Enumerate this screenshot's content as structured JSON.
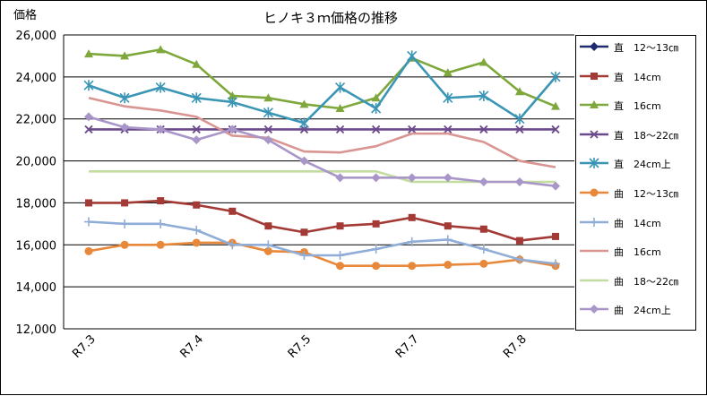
{
  "chart_data": {
    "type": "line",
    "title": "ヒノキ３ｍ価格の推移",
    "ylabel": "価格",
    "xlabel": "",
    "ylim": [
      12000,
      26000
    ],
    "yticks": [
      "12,000",
      "14,000",
      "16,000",
      "18,000",
      "20,000",
      "22,000",
      "24,000",
      "26,000"
    ],
    "ytick_values": [
      12000,
      14000,
      16000,
      18000,
      20000,
      22000,
      24000,
      26000
    ],
    "xtick_labels": [
      {
        "label": "R7.3",
        "index": 0
      },
      {
        "label": "R7.4",
        "index": 3
      },
      {
        "label": "R7.5",
        "index": 6
      },
      {
        "label": "R7.7",
        "index": 9
      },
      {
        "label": "R7.8",
        "index": 12
      }
    ],
    "n_points": 14,
    "legend_position": "right",
    "series": [
      {
        "name": "直　12～13㎝",
        "color": "#1f2a6e",
        "marker": "diamond",
        "values": [
          null,
          null,
          null,
          null,
          null,
          null,
          null,
          null,
          null,
          null,
          null,
          null,
          null,
          null
        ]
      },
      {
        "name": "直　14cm",
        "color": "#a33a36",
        "marker": "square",
        "values": [
          18000,
          18000,
          18100,
          17900,
          17600,
          16900,
          16600,
          16900,
          17000,
          17300,
          16900,
          16750,
          16200,
          16400
        ]
      },
      {
        "name": "直　16cm",
        "color": "#7fa83c",
        "marker": "triangle",
        "values": [
          25100,
          25000,
          25300,
          24600,
          23100,
          23000,
          22700,
          22500,
          23000,
          24900,
          24200,
          24700,
          23300,
          22600
        ]
      },
      {
        "name": "直　18～22㎝",
        "color": "#6b4a8c",
        "marker": "x",
        "values": [
          21500,
          21500,
          21500,
          21500,
          21500,
          21500,
          21500,
          21500,
          21500,
          21500,
          21500,
          21500,
          21500,
          21500
        ]
      },
      {
        "name": "直　24cm上",
        "color": "#3b95b5",
        "marker": "star",
        "values": [
          23600,
          23000,
          23500,
          23000,
          22800,
          22300,
          21800,
          23500,
          22500,
          25000,
          23000,
          23100,
          22000,
          24000
        ]
      },
      {
        "name": "曲　12～13㎝",
        "color": "#e8883a",
        "marker": "circle",
        "values": [
          15700,
          16000,
          16000,
          16100,
          16100,
          15700,
          15650,
          15000,
          15000,
          15000,
          15050,
          15100,
          15300,
          15000
        ]
      },
      {
        "name": "曲　14cm",
        "color": "#8fadd6",
        "marker": "plus",
        "values": [
          17100,
          17000,
          17000,
          16700,
          16000,
          16000,
          15500,
          15500,
          15800,
          16150,
          16250,
          15800,
          15300,
          15100
        ]
      },
      {
        "name": "曲　16cm",
        "color": "#d99592",
        "marker": "none",
        "values": [
          23000,
          22600,
          22400,
          22100,
          21200,
          21100,
          20450,
          20400,
          20700,
          21300,
          21300,
          20900,
          20000,
          19700
        ]
      },
      {
        "name": "曲　18～22㎝",
        "color": "#c3dca0",
        "marker": "none",
        "values": [
          19500,
          19500,
          19500,
          19500,
          19500,
          19500,
          19500,
          19500,
          19500,
          19000,
          19000,
          19000,
          19000,
          19000
        ]
      },
      {
        "name": "曲　24cm上",
        "color": "#a996c8",
        "marker": "diamond",
        "values": [
          22100,
          21600,
          21500,
          21000,
          21500,
          21000,
          20000,
          19200,
          19200,
          19200,
          19200,
          19000,
          19000,
          18800
        ]
      }
    ]
  }
}
